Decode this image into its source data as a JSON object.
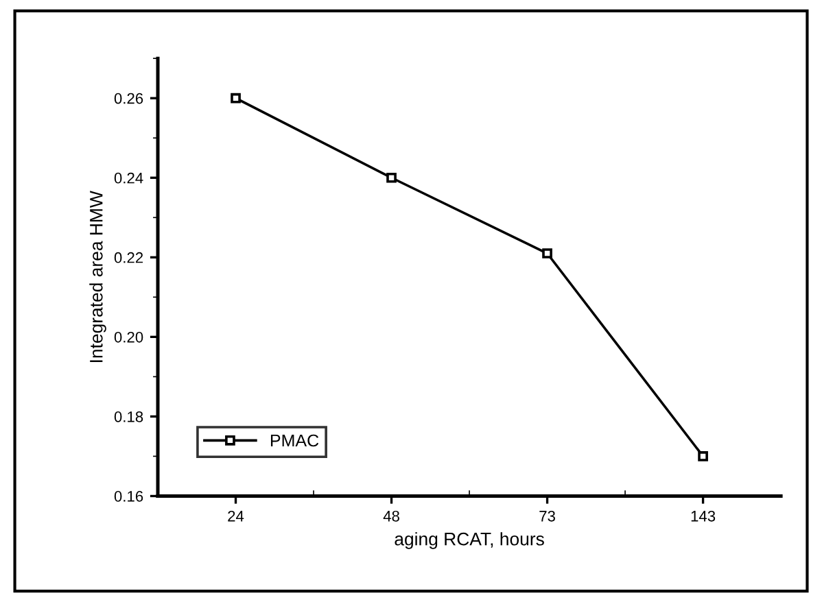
{
  "chart_data": {
    "type": "line",
    "xlabel": "aging RCAT, hours",
    "ylabel": "Integrated area HMW",
    "categories": [
      "24",
      "48",
      "73",
      "143"
    ],
    "series": [
      {
        "name": "PMAC",
        "color": "#000000",
        "values": [
          0.26,
          0.24,
          0.221,
          0.17
        ]
      }
    ],
    "ylim": [
      0.16,
      0.27
    ],
    "yticks": [
      {
        "value": 0.16,
        "label": "0.16"
      },
      {
        "value": 0.18,
        "label": "0.18"
      },
      {
        "value": 0.2,
        "label": "0.20"
      },
      {
        "value": 0.22,
        "label": "0.22"
      },
      {
        "value": 0.24,
        "label": "0.24"
      },
      {
        "value": 0.26,
        "label": "0.26"
      }
    ],
    "marker": "square",
    "line_style": "solid",
    "legend": "bottom left",
    "grid": false
  }
}
